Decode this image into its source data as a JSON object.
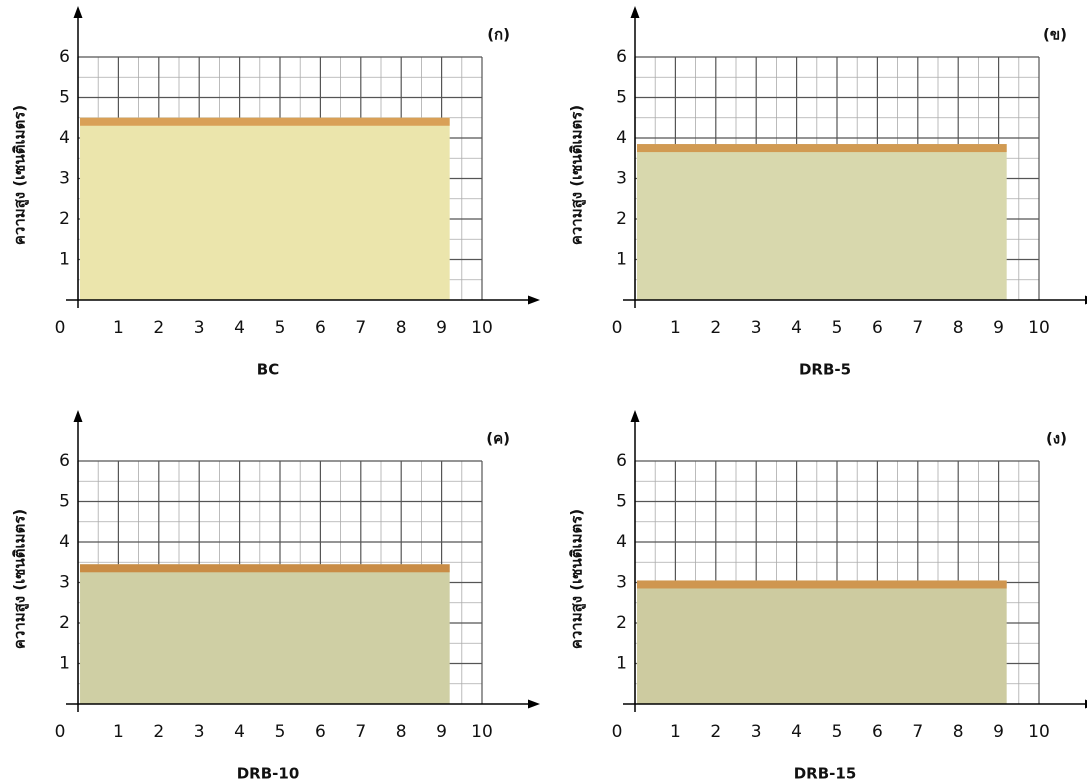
{
  "chart_data": [
    {
      "type": "histogram",
      "panel_label": "(ก)",
      "xlabel": "BC",
      "ylabel": "ความสูง (เซนติเมตร)",
      "bins": [
        0.05,
        9.2
      ],
      "values": [
        4.5
      ],
      "color": "#ebe5ac",
      "crust_color": "#d9a057",
      "xlim": [
        0,
        10
      ],
      "ylim": [
        0,
        6
      ],
      "xticks": [
        0,
        1,
        2,
        3,
        4,
        5,
        6,
        7,
        8,
        9,
        10
      ],
      "yticks": [
        1,
        2,
        3,
        4,
        5,
        6
      ],
      "grid": true
    },
    {
      "type": "histogram",
      "panel_label": "(ข)",
      "xlabel": "DRB-5",
      "ylabel": "ความสูง (เซนติเมตร)",
      "bins": [
        0.05,
        9.2
      ],
      "values": [
        3.85
      ],
      "color": "#d8d8ad",
      "crust_color": "#d19a52",
      "xlim": [
        0,
        10
      ],
      "ylim": [
        0,
        6
      ],
      "xticks": [
        0,
        1,
        2,
        3,
        4,
        5,
        6,
        7,
        8,
        9,
        10
      ],
      "yticks": [
        1,
        2,
        3,
        4,
        5,
        6
      ],
      "grid": true
    },
    {
      "type": "histogram",
      "panel_label": "(ค)",
      "xlabel": "DRB-10",
      "ylabel": "ความสูง (เซนติเมตร)",
      "bins": [
        0.05,
        9.2
      ],
      "values": [
        3.45
      ],
      "color": "#cfcfa4",
      "crust_color": "#c98c45",
      "xlim": [
        0,
        10
      ],
      "ylim": [
        0,
        6
      ],
      "xticks": [
        0,
        1,
        2,
        3,
        4,
        5,
        6,
        7,
        8,
        9,
        10
      ],
      "yticks": [
        1,
        2,
        3,
        4,
        5,
        6
      ],
      "grid": true
    },
    {
      "type": "histogram",
      "panel_label": "(ง)",
      "xlabel": "DRB-15",
      "ylabel": "ความสูง (เซนติเมตร)",
      "bins": [
        0.05,
        9.2
      ],
      "values": [
        3.05
      ],
      "color": "#cdcba0",
      "crust_color": "#cf9650",
      "xlim": [
        0,
        10
      ],
      "ylim": [
        0,
        6
      ],
      "xticks": [
        0,
        1,
        2,
        3,
        4,
        5,
        6,
        7,
        8,
        9,
        10
      ],
      "yticks": [
        1,
        2,
        3,
        4,
        5,
        6
      ],
      "grid": true
    }
  ]
}
